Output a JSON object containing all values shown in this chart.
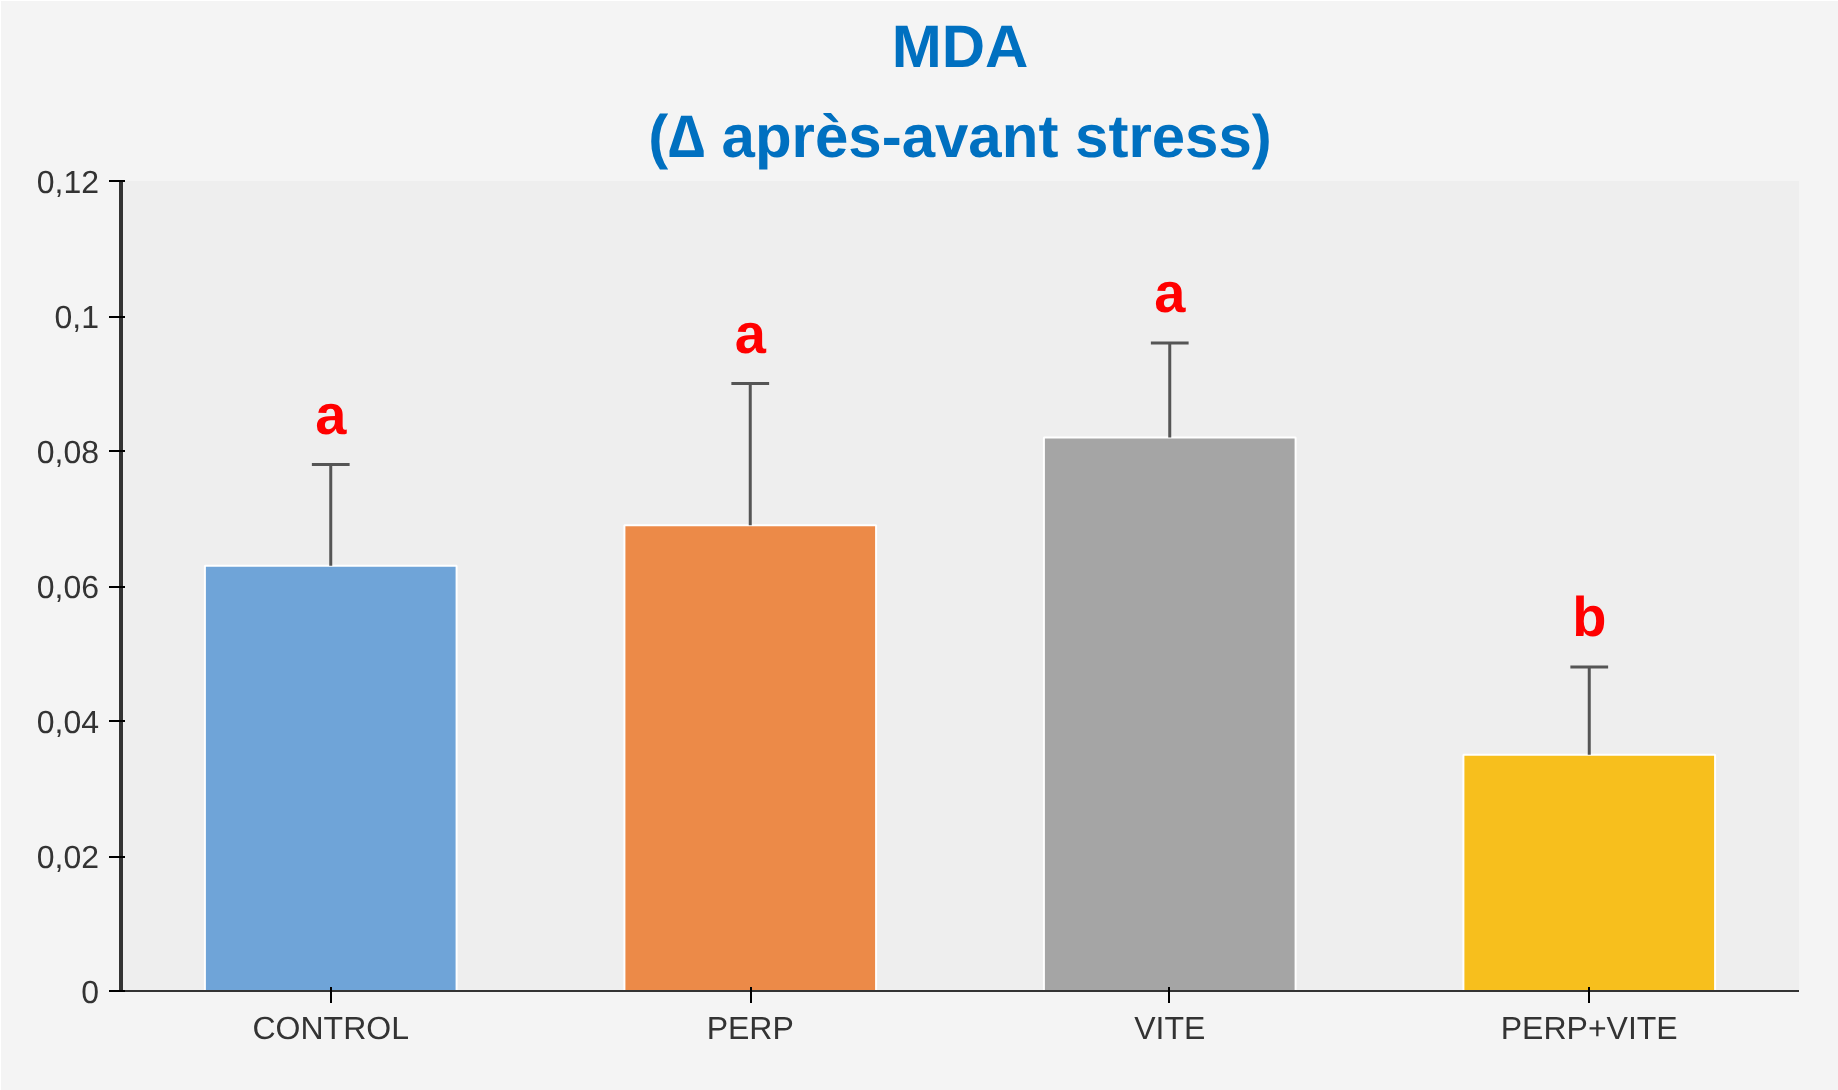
{
  "chart_data": {
    "type": "bar",
    "title": "MDA",
    "subtitle": "(∆ après-avant stress)",
    "categories": [
      "CONTROL",
      "PERP",
      "VITE",
      "PERP+VITE"
    ],
    "values": [
      0.063,
      0.069,
      0.082,
      0.035
    ],
    "colors": [
      "#6fa4d8",
      "#ec8a48",
      "#a5a5a5",
      "#f7bf1d"
    ],
    "errors": [
      [
        0.063,
        0.078
      ],
      [
        0.069,
        0.09
      ],
      [
        0.082,
        0.096
      ],
      [
        0.035,
        0.048
      ]
    ],
    "ylim": [
      0,
      0.12
    ],
    "yticks": [
      {
        "value": 0,
        "label": "0"
      },
      {
        "value": 0.02,
        "label": "0,02"
      },
      {
        "value": 0.04,
        "label": "0,04"
      },
      {
        "value": 0.06,
        "label": "0,06"
      },
      {
        "value": 0.08,
        "label": "0,08"
      },
      {
        "value": 0.1,
        "label": "0,1"
      },
      {
        "value": 0.12,
        "label": "0,12"
      }
    ],
    "annotations": [
      "a",
      "a",
      "a",
      "b"
    ],
    "grid": false
  }
}
